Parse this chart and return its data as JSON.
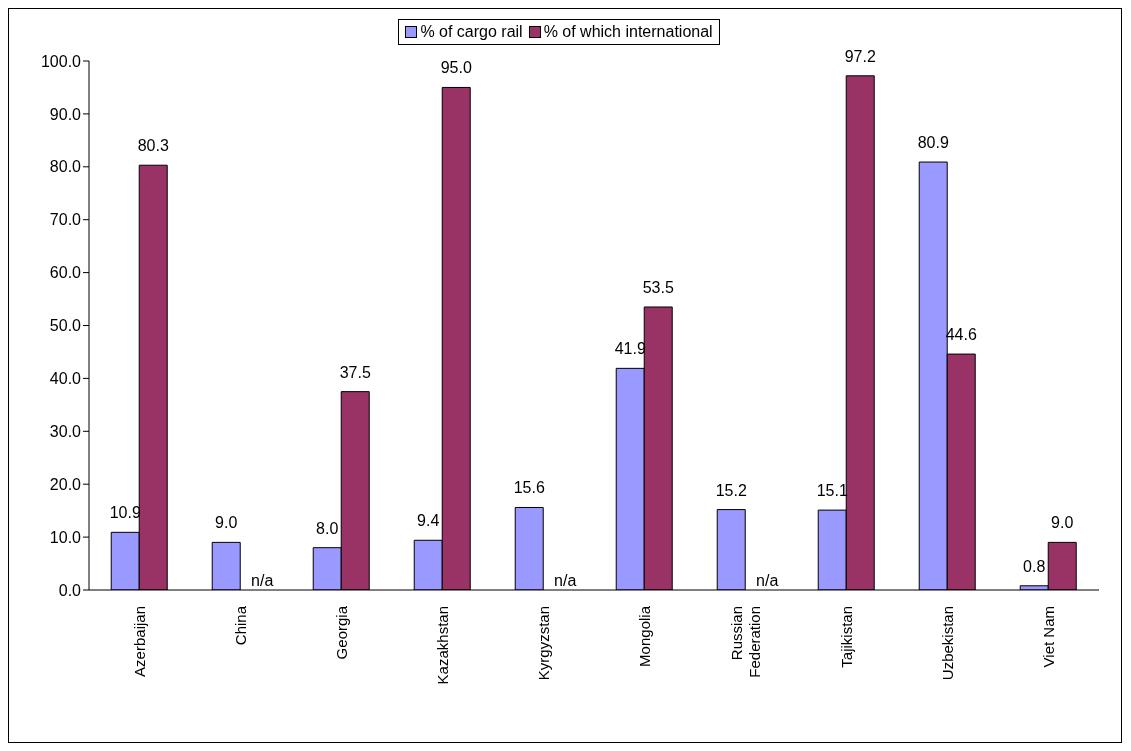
{
  "chart_data": {
    "type": "bar",
    "categories": [
      "Azerbaijan",
      "China",
      "Georgia",
      "Kazakhstan",
      "Kyrgyzstan",
      "Mongolia",
      "Russian Federation",
      "Tajikistan",
      "Uzbekistan",
      "Viet Nam"
    ],
    "series": [
      {
        "name": "% of cargo rail",
        "color": "#9999ff",
        "values": [
          10.9,
          9.0,
          8.0,
          9.4,
          15.6,
          41.9,
          15.2,
          15.1,
          80.9,
          0.8
        ],
        "value_labels": [
          "10.9",
          "9.0",
          "8.0",
          "9.4",
          "15.6",
          "41.9",
          "15.2",
          "15.1",
          "80.9",
          "0.8"
        ]
      },
      {
        "name": "% of which international",
        "color": "#993366",
        "values": [
          80.3,
          null,
          37.5,
          95.0,
          null,
          53.5,
          null,
          97.2,
          44.6,
          9.0
        ],
        "value_labels": [
          "80.3",
          "n/a",
          "37.5",
          "95.0",
          "n/a",
          "53.5",
          "n/a",
          "97.2",
          "44.6",
          "9.0"
        ]
      }
    ],
    "ylim": [
      0,
      100
    ],
    "yticks": [
      {
        "value": 0,
        "label": "0.0"
      },
      {
        "value": 10,
        "label": "10.0"
      },
      {
        "value": 20,
        "label": "20.0"
      },
      {
        "value": 30,
        "label": "30.0"
      },
      {
        "value": 40,
        "label": "40.0"
      },
      {
        "value": 50,
        "label": "50.0"
      },
      {
        "value": 60,
        "label": "60.0"
      },
      {
        "value": 70,
        "label": "70.0"
      },
      {
        "value": 80,
        "label": "80.0"
      },
      {
        "value": 90,
        "label": "90.0"
      },
      {
        "value": 100,
        "label": "100.0"
      }
    ],
    "grid": false,
    "legend": "top"
  }
}
